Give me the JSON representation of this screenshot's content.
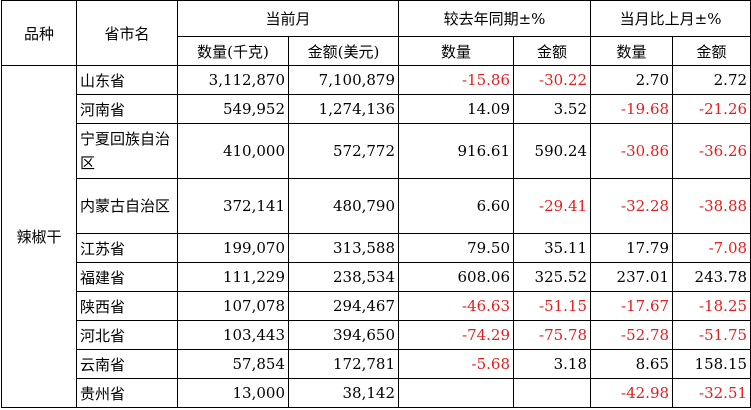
{
  "table": {
    "headers": {
      "variety": "品种",
      "province": "省市名",
      "current_month": "当前月",
      "yoy": "较去年同期±%",
      "mom": "当月比上月±%",
      "quantity": "数量(千克)",
      "amount": "金额(美元)",
      "yoy_quantity": "数量",
      "yoy_amount": "金额",
      "mom_quantity": "数量",
      "mom_amount": "金额"
    },
    "category": "辣椒干",
    "rows": [
      {
        "province": "山东省",
        "quantity": "3,112,870",
        "amount": "7,100,879",
        "yoy_qty": "-15.86",
        "yoy_amt": "-30.22",
        "mom_qty": "2.70",
        "mom_amt": "2.72"
      },
      {
        "province": "河南省",
        "quantity": "549,952",
        "amount": "1,274,136",
        "yoy_qty": "14.09",
        "yoy_amt": "3.52",
        "mom_qty": "-19.68",
        "mom_amt": "-21.26"
      },
      {
        "province": "宁夏回族自治区",
        "quantity": "410,000",
        "amount": "572,772",
        "yoy_qty": "916.61",
        "yoy_amt": "590.24",
        "mom_qty": "-30.86",
        "mom_amt": "-36.26"
      },
      {
        "province": "内蒙古自治区",
        "quantity": "372,141",
        "amount": "480,790",
        "yoy_qty": "6.60",
        "yoy_amt": "-29.41",
        "mom_qty": "-32.28",
        "mom_amt": "-38.88"
      },
      {
        "province": "江苏省",
        "quantity": "199,070",
        "amount": "313,588",
        "yoy_qty": "79.50",
        "yoy_amt": "35.11",
        "mom_qty": "17.79",
        "mom_amt": "-7.08"
      },
      {
        "province": "福建省",
        "quantity": "111,229",
        "amount": "238,534",
        "yoy_qty": "608.06",
        "yoy_amt": "325.52",
        "mom_qty": "237.01",
        "mom_amt": "243.78"
      },
      {
        "province": "陕西省",
        "quantity": "107,078",
        "amount": "294,467",
        "yoy_qty": "-46.63",
        "yoy_amt": "-51.15",
        "mom_qty": "-17.67",
        "mom_amt": "-18.25"
      },
      {
        "province": "河北省",
        "quantity": "103,443",
        "amount": "394,650",
        "yoy_qty": "-74.29",
        "yoy_amt": "-75.78",
        "mom_qty": "-52.78",
        "mom_amt": "-51.75"
      },
      {
        "province": "云南省",
        "quantity": "57,854",
        "amount": "172,781",
        "yoy_qty": "-5.68",
        "yoy_amt": "3.18",
        "mom_qty": "8.65",
        "mom_amt": "158.15"
      },
      {
        "province": "贵州省",
        "quantity": "13,000",
        "amount": "38,142",
        "yoy_qty": "",
        "yoy_amt": "",
        "mom_qty": "-42.98",
        "mom_amt": "-32.51"
      }
    ]
  },
  "colors": {
    "negative": "#e02020",
    "text": "#000000",
    "border": "#000000"
  }
}
